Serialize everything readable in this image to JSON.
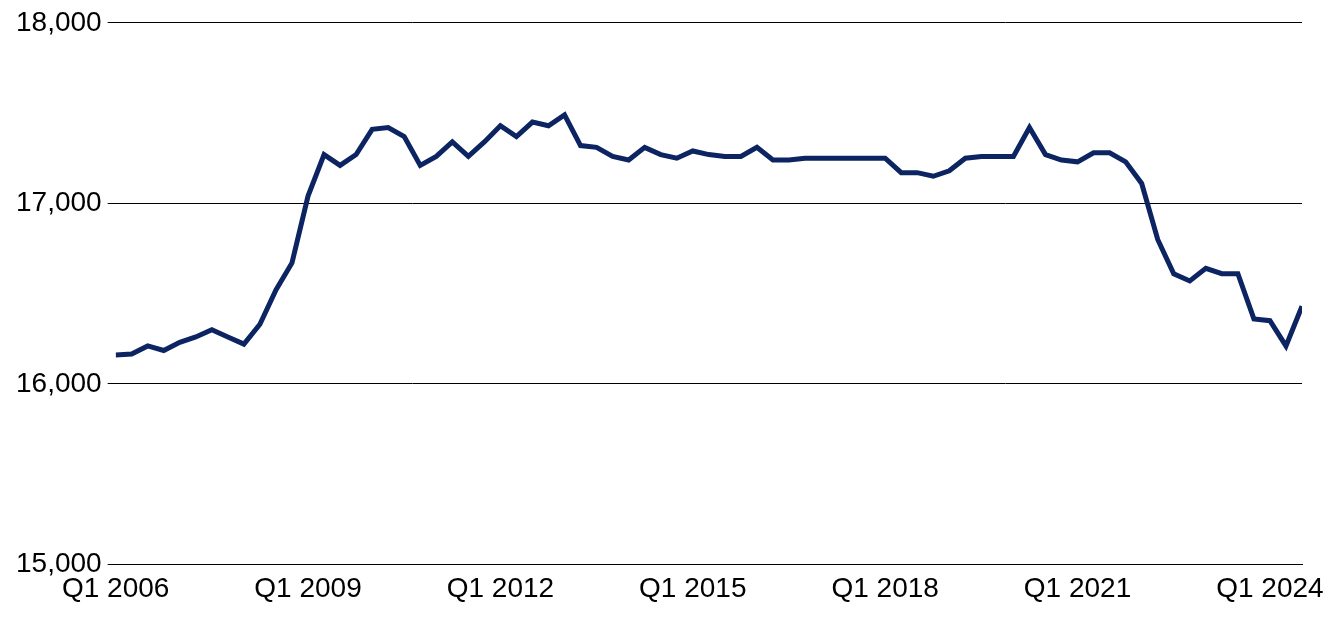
{
  "chart_data": {
    "type": "line",
    "categories": [
      "Q1 2006",
      null,
      null,
      null,
      null,
      null,
      null,
      null,
      null,
      null,
      null,
      null,
      "Q1 2009",
      null,
      null,
      null,
      null,
      null,
      null,
      null,
      null,
      null,
      null,
      null,
      "Q1 2012",
      null,
      null,
      null,
      null,
      null,
      null,
      null,
      null,
      null,
      null,
      null,
      "Q1 2015",
      null,
      null,
      null,
      null,
      null,
      null,
      null,
      null,
      null,
      null,
      null,
      "Q1 2018",
      null,
      null,
      null,
      null,
      null,
      null,
      null,
      null,
      null,
      null,
      null,
      "Q1 2021",
      null,
      null,
      null,
      null,
      null,
      null,
      null,
      null,
      null,
      null,
      null,
      "Q1 2024",
      null,
      null
    ],
    "values": [
      16160,
      16165,
      16210,
      16185,
      16230,
      16260,
      16300,
      16260,
      16220,
      16330,
      16520,
      16670,
      17040,
      17270,
      17210,
      17270,
      17410,
      17420,
      17370,
      17210,
      17260,
      17340,
      17260,
      17340,
      17430,
      17370,
      17450,
      17430,
      17490,
      17320,
      17310,
      17260,
      17240,
      17310,
      17270,
      17250,
      17290,
      17270,
      17260,
      17260,
      17310,
      17240,
      17240,
      17250,
      17250,
      17250,
      17250,
      17250,
      17250,
      17170,
      17170,
      17150,
      17180,
      17250,
      17260,
      17260,
      17260,
      17420,
      17270,
      17240,
      17230,
      17280,
      17280,
      17230,
      17110,
      16800,
      16610,
      16570,
      16640,
      16610,
      16610,
      16360,
      16350,
      16210,
      16430
    ],
    "color": "#0c2461",
    "ylim": [
      15000,
      18000
    ],
    "yticks": [
      {
        "value": 15000,
        "label": "15,000"
      },
      {
        "value": 16000,
        "label": "16,000"
      },
      {
        "value": 17000,
        "label": "17,000"
      },
      {
        "value": 18000,
        "label": "18,000"
      }
    ],
    "grid": true
  }
}
